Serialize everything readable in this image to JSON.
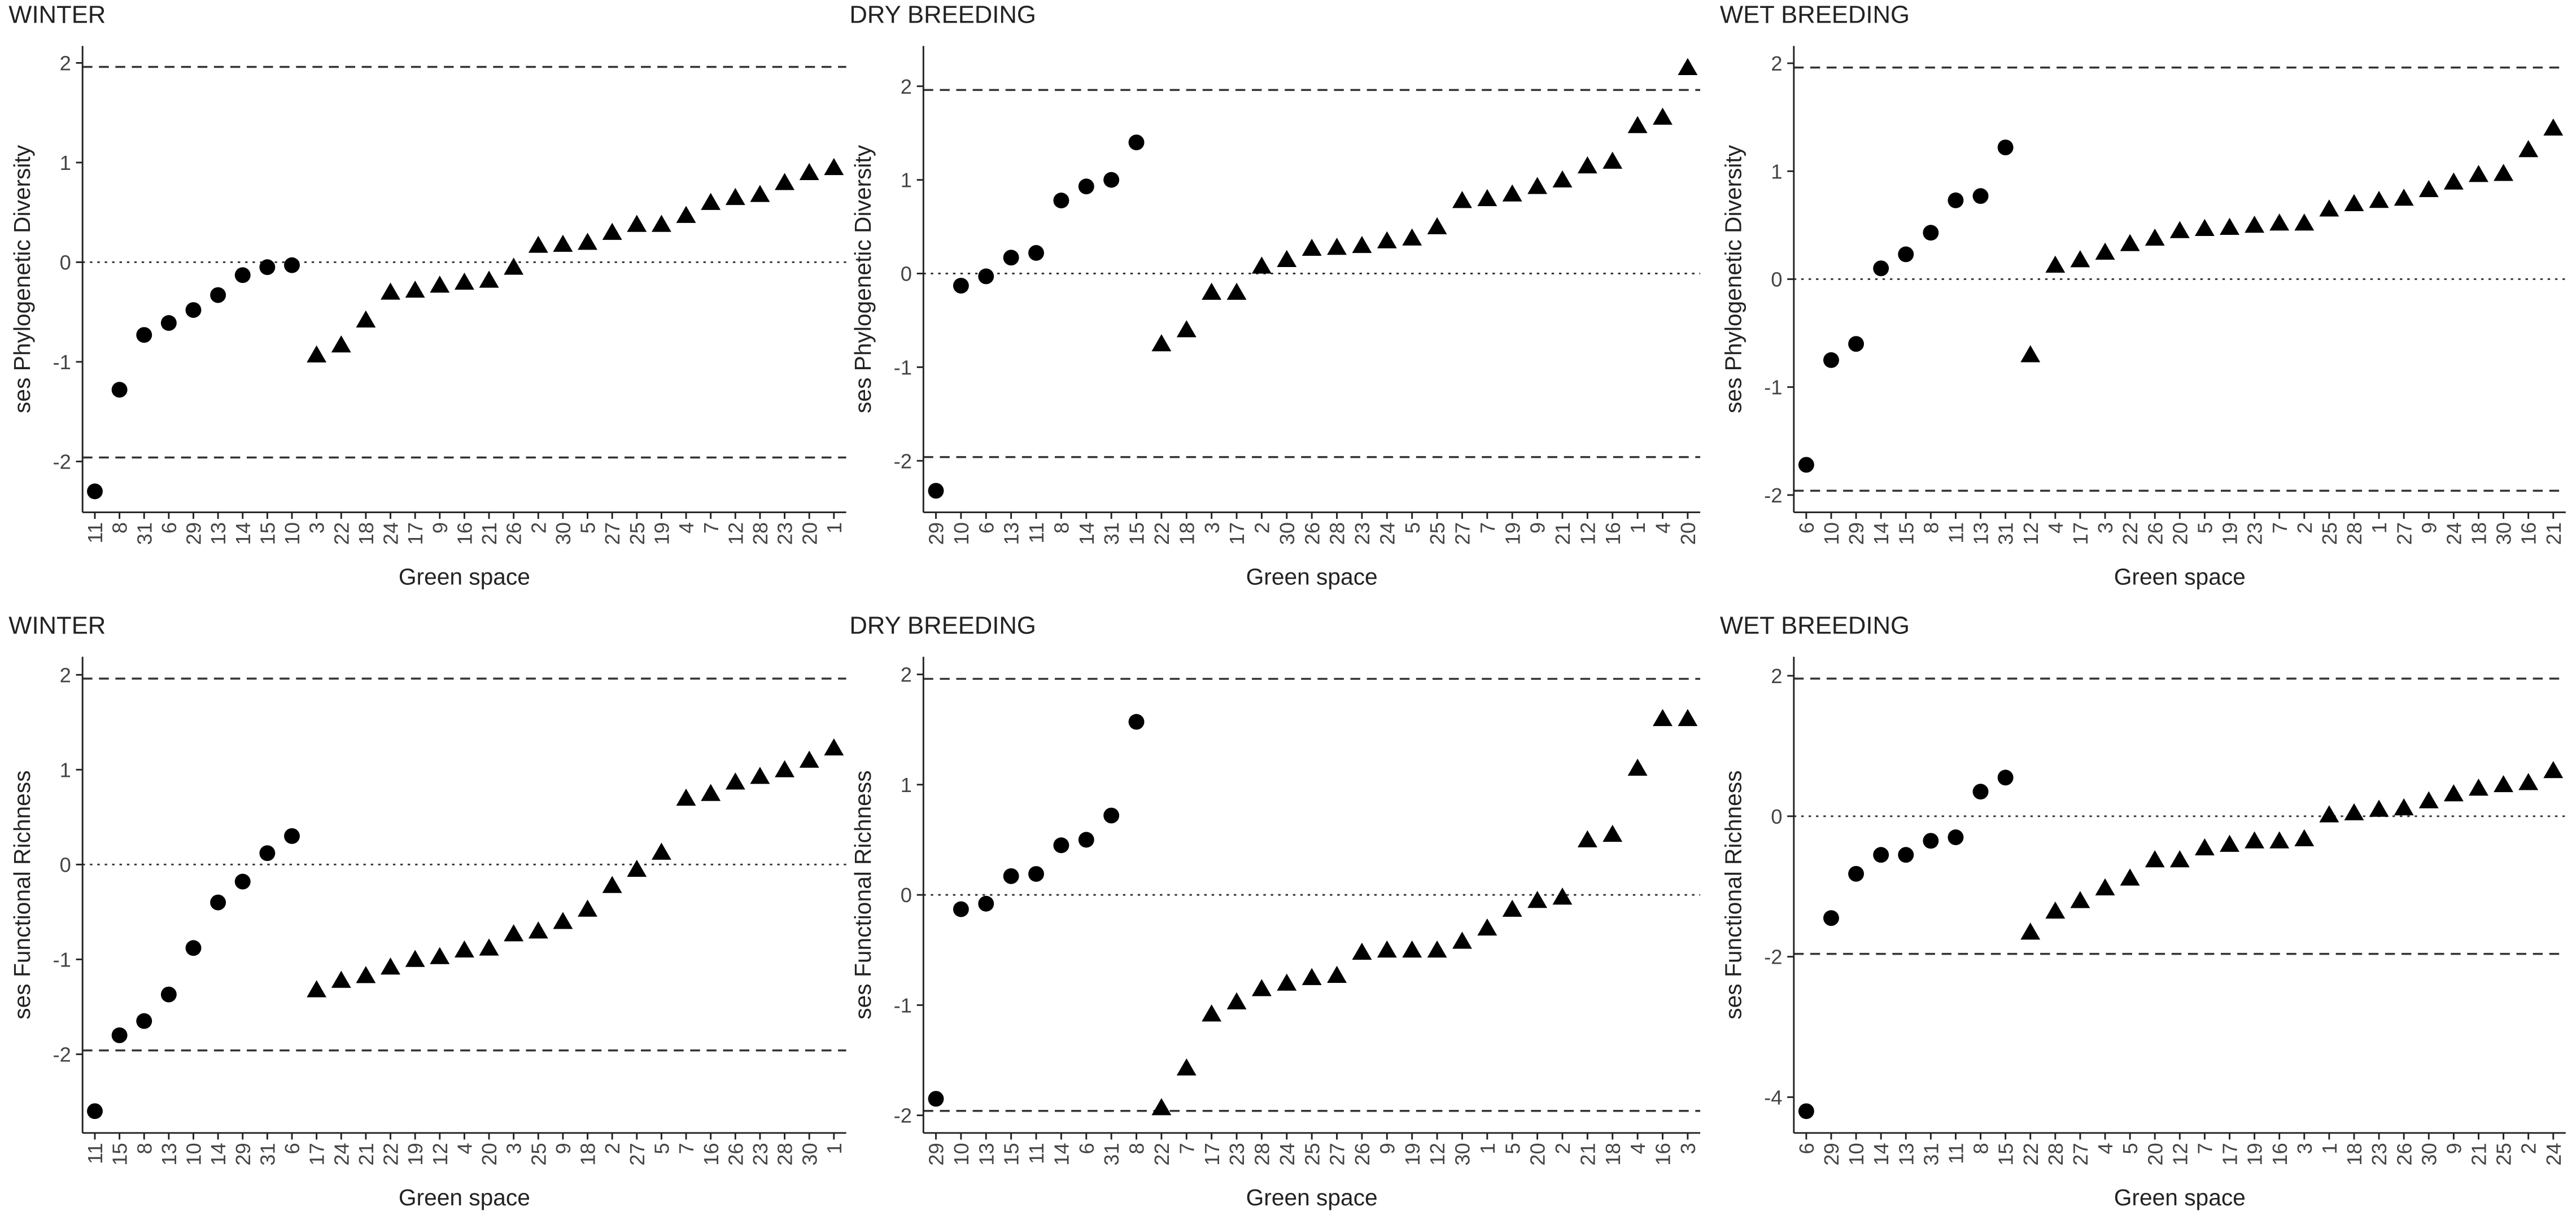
{
  "chart_data": [
    {
      "type": "dot",
      "title": "WINTER",
      "ylabel": "ses Phylogenetic Diversity",
      "xlabel": "Green space",
      "color": "#000000",
      "categories": [
        "11",
        "8",
        "31",
        "6",
        "29",
        "13",
        "14",
        "15",
        "10",
        "3",
        "22",
        "18",
        "24",
        "17",
        "9",
        "16",
        "21",
        "26",
        "2",
        "30",
        "5",
        "27",
        "25",
        "19",
        "4",
        "7",
        "12",
        "28",
        "23",
        "20",
        "1"
      ],
      "values": [
        -2.3,
        -1.28,
        -0.73,
        -0.61,
        -0.48,
        -0.33,
        -0.13,
        -0.05,
        -0.03,
        -0.93,
        -0.83,
        -0.58,
        -0.3,
        -0.28,
        -0.23,
        -0.2,
        -0.18,
        -0.05,
        0.17,
        0.18,
        0.2,
        0.3,
        0.38,
        0.38,
        0.47,
        0.6,
        0.65,
        0.68,
        0.8,
        0.9,
        0.95
      ],
      "markers": [
        "circle",
        "circle",
        "circle",
        "circle",
        "circle",
        "circle",
        "circle",
        "circle",
        "circle",
        "triangle",
        "triangle",
        "triangle",
        "triangle",
        "triangle",
        "triangle",
        "triangle",
        "triangle",
        "triangle",
        "triangle",
        "triangle",
        "triangle",
        "triangle",
        "triangle",
        "triangle",
        "triangle",
        "triangle",
        "triangle",
        "triangle",
        "triangle",
        "triangle",
        "triangle"
      ],
      "ylim": [
        -2.51,
        2.17
      ],
      "yticks": [
        -2,
        -1,
        0,
        1,
        2
      ],
      "hlines": [
        {
          "value": 1.96,
          "style": "dashed"
        },
        {
          "value": 0,
          "style": "dotted"
        },
        {
          "value": -1.96,
          "style": "dashed"
        }
      ]
    },
    {
      "type": "dot",
      "title": "DRY BREEDING",
      "ylabel": "ses Phylogenetic Diversity",
      "xlabel": "Green space",
      "color": "#000000",
      "categories": [
        "29",
        "10",
        "6",
        "13",
        "11",
        "8",
        "14",
        "31",
        "15",
        "22",
        "18",
        "3",
        "17",
        "2",
        "30",
        "26",
        "28",
        "23",
        "24",
        "5",
        "25",
        "27",
        "7",
        "19",
        "9",
        "21",
        "12",
        "16",
        "1",
        "4",
        "20"
      ],
      "values": [
        -2.32,
        -0.13,
        -0.03,
        0.17,
        0.22,
        0.78,
        0.93,
        1.0,
        1.4,
        -0.75,
        -0.6,
        -0.2,
        -0.2,
        0.08,
        0.15,
        0.27,
        0.28,
        0.3,
        0.35,
        0.38,
        0.5,
        0.78,
        0.8,
        0.85,
        0.93,
        1.0,
        1.15,
        1.2,
        1.58,
        1.67,
        2.2
      ],
      "markers": [
        "circle",
        "circle",
        "circle",
        "circle",
        "circle",
        "circle",
        "circle",
        "circle",
        "circle",
        "triangle",
        "triangle",
        "triangle",
        "triangle",
        "triangle",
        "triangle",
        "triangle",
        "triangle",
        "triangle",
        "triangle",
        "triangle",
        "triangle",
        "triangle",
        "triangle",
        "triangle",
        "triangle",
        "triangle",
        "triangle",
        "triangle",
        "triangle",
        "triangle",
        "triangle"
      ],
      "ylim": [
        -2.55,
        2.43
      ],
      "yticks": [
        -2,
        -1,
        0,
        1,
        2
      ],
      "hlines": [
        {
          "value": 1.96,
          "style": "dashed"
        },
        {
          "value": 0,
          "style": "dotted"
        },
        {
          "value": -1.96,
          "style": "dashed"
        }
      ]
    },
    {
      "type": "dot",
      "title": "WET BREEDING",
      "ylabel": "ses Phylogenetic Diversity",
      "xlabel": "Green space",
      "color": "#000000",
      "categories": [
        "6",
        "10",
        "29",
        "14",
        "15",
        "8",
        "11",
        "13",
        "31",
        "12",
        "4",
        "17",
        "3",
        "22",
        "26",
        "20",
        "5",
        "19",
        "23",
        "7",
        "2",
        "25",
        "28",
        "1",
        "27",
        "9",
        "24",
        "18",
        "30",
        "16",
        "21"
      ],
      "values": [
        -1.72,
        -0.75,
        -0.6,
        0.1,
        0.23,
        0.43,
        0.73,
        0.77,
        1.22,
        -0.7,
        0.13,
        0.18,
        0.25,
        0.33,
        0.38,
        0.45,
        0.47,
        0.48,
        0.5,
        0.52,
        0.52,
        0.65,
        0.7,
        0.73,
        0.75,
        0.83,
        0.9,
        0.97,
        0.98,
        1.2,
        1.4
      ],
      "markers": [
        "circle",
        "circle",
        "circle",
        "circle",
        "circle",
        "circle",
        "circle",
        "circle",
        "circle",
        "triangle",
        "triangle",
        "triangle",
        "triangle",
        "triangle",
        "triangle",
        "triangle",
        "triangle",
        "triangle",
        "triangle",
        "triangle",
        "triangle",
        "triangle",
        "triangle",
        "triangle",
        "triangle",
        "triangle",
        "triangle",
        "triangle",
        "triangle",
        "triangle",
        "triangle"
      ],
      "ylim": [
        -2.16,
        2.16
      ],
      "yticks": [
        -2,
        -1,
        0,
        1,
        2
      ],
      "hlines": [
        {
          "value": 1.96,
          "style": "dashed"
        },
        {
          "value": 0,
          "style": "dotted"
        },
        {
          "value": -1.96,
          "style": "dashed"
        }
      ]
    },
    {
      "type": "dot",
      "title": "WINTER",
      "ylabel": "ses Functional Richness",
      "xlabel": "Green space",
      "color": "#000000",
      "categories": [
        "11",
        "15",
        "8",
        "13",
        "10",
        "14",
        "29",
        "31",
        "6",
        "17",
        "24",
        "21",
        "22",
        "19",
        "12",
        "4",
        "20",
        "3",
        "25",
        "9",
        "18",
        "2",
        "27",
        "5",
        "7",
        "16",
        "26",
        "23",
        "28",
        "30",
        "1"
      ],
      "values": [
        -2.6,
        -1.8,
        -1.65,
        -1.37,
        -0.88,
        -0.4,
        -0.18,
        0.12,
        0.3,
        -1.32,
        -1.22,
        -1.17,
        -1.08,
        -1.0,
        -0.97,
        -0.9,
        -0.88,
        -0.73,
        -0.7,
        -0.6,
        -0.47,
        -0.22,
        -0.05,
        0.13,
        0.7,
        0.75,
        0.87,
        0.93,
        1.0,
        1.1,
        1.23
      ],
      "markers": [
        "circle",
        "circle",
        "circle",
        "circle",
        "circle",
        "circle",
        "circle",
        "circle",
        "circle",
        "triangle",
        "triangle",
        "triangle",
        "triangle",
        "triangle",
        "triangle",
        "triangle",
        "triangle",
        "triangle",
        "triangle",
        "triangle",
        "triangle",
        "triangle",
        "triangle",
        "triangle",
        "triangle",
        "triangle",
        "triangle",
        "triangle",
        "triangle",
        "triangle",
        "triangle"
      ],
      "ylim": [
        -2.83,
        2.19
      ],
      "yticks": [
        -2,
        -1,
        0,
        1,
        2
      ],
      "hlines": [
        {
          "value": 1.96,
          "style": "dashed"
        },
        {
          "value": 0,
          "style": "dotted"
        },
        {
          "value": -1.96,
          "style": "dashed"
        }
      ]
    },
    {
      "type": "dot",
      "title": "DRY BREEDING",
      "ylabel": "ses Functional Richness",
      "xlabel": "Green space",
      "color": "#000000",
      "categories": [
        "29",
        "10",
        "13",
        "15",
        "11",
        "14",
        "6",
        "31",
        "8",
        "22",
        "7",
        "17",
        "23",
        "28",
        "24",
        "25",
        "27",
        "26",
        "9",
        "19",
        "12",
        "30",
        "1",
        "5",
        "20",
        "2",
        "21",
        "18",
        "4",
        "16",
        "3"
      ],
      "values": [
        -1.85,
        -0.13,
        -0.08,
        0.17,
        0.19,
        0.45,
        0.5,
        0.72,
        1.57,
        -1.93,
        -1.57,
        -1.08,
        -0.97,
        -0.85,
        -0.8,
        -0.75,
        -0.73,
        -0.52,
        -0.5,
        -0.5,
        -0.5,
        -0.42,
        -0.3,
        -0.13,
        -0.05,
        -0.02,
        0.5,
        0.55,
        1.15,
        1.6,
        1.6
      ],
      "markers": [
        "circle",
        "circle",
        "circle",
        "circle",
        "circle",
        "circle",
        "circle",
        "circle",
        "circle",
        "triangle",
        "triangle",
        "triangle",
        "triangle",
        "triangle",
        "triangle",
        "triangle",
        "triangle",
        "triangle",
        "triangle",
        "triangle",
        "triangle",
        "triangle",
        "triangle",
        "triangle",
        "triangle",
        "triangle",
        "triangle",
        "triangle",
        "triangle",
        "triangle",
        "triangle"
      ],
      "ylim": [
        -2.16,
        2.16
      ],
      "yticks": [
        -2,
        -1,
        0,
        1,
        2
      ],
      "hlines": [
        {
          "value": 1.96,
          "style": "dashed"
        },
        {
          "value": 0,
          "style": "dotted"
        },
        {
          "value": -1.96,
          "style": "dashed"
        }
      ]
    },
    {
      "type": "dot",
      "title": "WET BREEDING",
      "ylabel": "ses Functional Richness",
      "xlabel": "Green space",
      "color": "#000000",
      "categories": [
        "6",
        "29",
        "10",
        "14",
        "13",
        "31",
        "11",
        "8",
        "15",
        "22",
        "28",
        "27",
        "4",
        "5",
        "20",
        "12",
        "7",
        "17",
        "19",
        "16",
        "3",
        "1",
        "18",
        "23",
        "26",
        "30",
        "9",
        "21",
        "25",
        "2",
        "24"
      ],
      "values": [
        -4.2,
        -1.45,
        -0.82,
        -0.55,
        -0.55,
        -0.35,
        -0.3,
        0.35,
        0.55,
        -1.65,
        -1.35,
        -1.2,
        -1.02,
        -0.88,
        -0.62,
        -0.62,
        -0.45,
        -0.4,
        -0.35,
        -0.35,
        -0.32,
        0.02,
        0.05,
        0.1,
        0.12,
        0.22,
        0.32,
        0.4,
        0.45,
        0.48,
        0.65
      ],
      "markers": [
        "circle",
        "circle",
        "circle",
        "circle",
        "circle",
        "circle",
        "circle",
        "circle",
        "circle",
        "triangle",
        "triangle",
        "triangle",
        "triangle",
        "triangle",
        "triangle",
        "triangle",
        "triangle",
        "triangle",
        "triangle",
        "triangle",
        "triangle",
        "triangle",
        "triangle",
        "triangle",
        "triangle",
        "triangle",
        "triangle",
        "triangle",
        "triangle",
        "triangle",
        "triangle"
      ],
      "ylim": [
        -4.51,
        2.27
      ],
      "yticks": [
        -4,
        -2,
        0,
        2
      ],
      "hlines": [
        {
          "value": 1.96,
          "style": "dashed"
        },
        {
          "value": 0,
          "style": "dotted"
        },
        {
          "value": -1.96,
          "style": "dashed"
        }
      ]
    }
  ]
}
